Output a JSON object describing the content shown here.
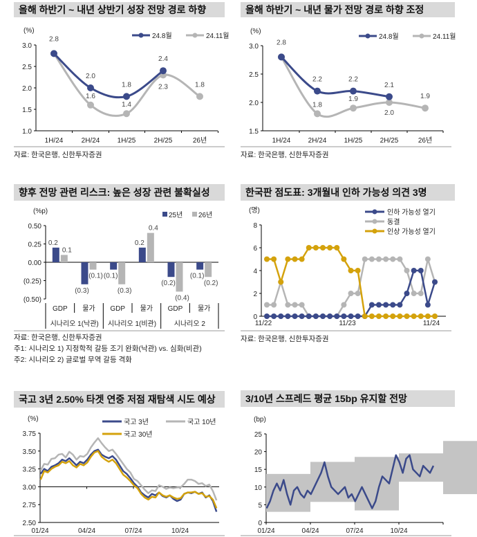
{
  "colors": {
    "navy": "#3b4a8a",
    "gray": "#b5b5b5",
    "gold": "#d4a20c",
    "title_bg": "#d9d9d9"
  },
  "source_text": "자료: 한국은행, 신한투자증권",
  "chart_data": [
    {
      "id": "growth",
      "type": "line",
      "title": "올해 하반기 ~ 내년 상반기 성장 전망 경로 하향",
      "unit": "(%)",
      "categories": [
        "1H/24",
        "2H/24",
        "1H/25",
        "2H/25",
        "26년"
      ],
      "ylim": [
        1.0,
        3.0
      ],
      "yticks": [
        "1.0",
        "1.5",
        "2.0",
        "2.5",
        "3.0"
      ],
      "series": [
        {
          "name": "24.8월",
          "values": [
            2.8,
            2.0,
            1.8,
            2.4,
            null
          ],
          "color": "#3b4a8a"
        },
        {
          "name": "24.11월",
          "values": [
            2.8,
            1.6,
            1.4,
            2.3,
            1.8
          ],
          "color": "#b5b5b5"
        }
      ],
      "data_labels": true
    },
    {
      "id": "inflation",
      "type": "line",
      "title": "올해 하반기 ~ 내년 물가 전망 경로 하향 조정",
      "unit": "(%)",
      "categories": [
        "1H/24",
        "2H/24",
        "1H/25",
        "2H/25",
        "26년"
      ],
      "ylim": [
        1.5,
        3.0
      ],
      "yticks": [
        "1.5",
        "2.0",
        "2.5",
        "3.0"
      ],
      "series": [
        {
          "name": "24.8월",
          "values": [
            2.8,
            2.2,
            2.2,
            2.1,
            null
          ],
          "color": "#3b4a8a"
        },
        {
          "name": "24.11월",
          "values": [
            2.8,
            1.8,
            1.9,
            2.0,
            1.9
          ],
          "color": "#b5b5b5"
        }
      ],
      "data_labels": true
    },
    {
      "id": "risk",
      "type": "bar",
      "title": "향후 전망 관련 리스크: 높은 성장 관련 불확실성",
      "unit": "(%p)",
      "categories": [
        "GDP",
        "물가",
        "GDP",
        "물가",
        "GDP",
        "물가"
      ],
      "groups": [
        "시나리오 1(낙관)",
        "시나리오 1(비관)",
        "시나리오 2"
      ],
      "ylim": [
        -0.5,
        0.5
      ],
      "yticks": [
        "(0.50)",
        "(0.25)",
        "0.00",
        "0.25",
        "0.50"
      ],
      "series": [
        {
          "name": "25년",
          "values": [
            0.2,
            -0.3,
            -0.1,
            0.2,
            -0.2,
            -0.1
          ],
          "color": "#3b4a8a"
        },
        {
          "name": "26년",
          "values": [
            0.1,
            -0.1,
            -0.3,
            0.4,
            -0.4,
            -0.2
          ],
          "color": "#b5b5b5"
        }
      ],
      "notes": [
        "주1: 시나리오 1) 지정학적 갈등 조기 완화(낙관) vs. 심화(비관)",
        "주2: 시나리오 2) 글로벌 무역 갈등 격화"
      ]
    },
    {
      "id": "dotplot",
      "type": "line",
      "title": "한국판 점도표: 3개월내 인하 가능성 의견 3명",
      "unit": "(명)",
      "x_ticks": [
        "11/22",
        "11/23",
        "11/24"
      ],
      "ylim": [
        0,
        8
      ],
      "yticks": [
        "0",
        "2",
        "4",
        "6",
        "8"
      ],
      "series": [
        {
          "name": "인하 가능성 열기",
          "color": "#3b4a8a",
          "values": [
            0,
            0,
            0,
            0,
            0,
            0,
            0,
            0,
            0,
            0,
            0,
            0,
            0,
            0,
            0,
            1,
            1,
            1,
            1,
            1,
            2,
            4,
            4,
            1,
            3
          ]
        },
        {
          "name": "동결",
          "color": "#b5b5b5",
          "values": [
            1,
            1,
            3,
            1,
            1,
            1,
            0,
            0,
            0,
            0,
            0,
            1,
            2,
            2,
            5,
            5,
            5,
            5,
            5,
            5,
            4,
            2,
            2,
            5,
            3
          ]
        },
        {
          "name": "인상 가능성 열기",
          "color": "#d4a20c",
          "values": [
            5,
            5,
            3,
            5,
            5,
            5,
            6,
            6,
            6,
            6,
            6,
            5,
            4,
            4,
            0,
            0,
            0,
            0,
            0,
            0,
            0,
            0,
            0,
            0,
            0
          ]
        }
      ]
    },
    {
      "id": "yields",
      "type": "line",
      "title": "국고 3년 2.50% 타겟 연중 저점 재탐색 시도 예상",
      "unit": "(%)",
      "x_ticks": [
        "01/24",
        "04/24",
        "07/24",
        "10/24"
      ],
      "ylim": [
        2.5,
        3.75
      ],
      "yticks": [
        "2.50",
        "2.75",
        "3.00",
        "3.25",
        "3.50",
        "3.75"
      ],
      "dates": [
        "2024-01-02",
        "2024-01-09",
        "2024-01-16",
        "2024-01-23",
        "2024-01-30",
        "2024-02-06",
        "2024-02-13",
        "2024-02-20",
        "2024-02-27",
        "2024-03-05",
        "2024-03-12",
        "2024-03-19",
        "2024-03-26",
        "2024-04-02",
        "2024-04-09",
        "2024-04-16",
        "2024-04-23",
        "2024-04-30",
        "2024-05-07",
        "2024-05-14",
        "2024-05-21",
        "2024-05-28",
        "2024-06-04",
        "2024-06-11",
        "2024-06-18",
        "2024-06-25",
        "2024-07-02",
        "2024-07-09",
        "2024-07-16",
        "2024-07-23",
        "2024-07-30",
        "2024-08-06",
        "2024-08-13",
        "2024-08-20",
        "2024-08-27",
        "2024-09-03",
        "2024-09-10",
        "2024-09-17",
        "2024-09-24",
        "2024-10-01",
        "2024-10-08",
        "2024-10-15",
        "2024-10-22",
        "2024-10-29",
        "2024-11-05",
        "2024-11-12",
        "2024-11-19",
        "2024-11-26",
        "2024-12-03",
        "2024-12-10"
      ],
      "series": [
        {
          "name": "국고 10년",
          "color": "#b5b5b5",
          "values": [
            3.23,
            3.32,
            3.31,
            3.39,
            3.4,
            3.45,
            3.46,
            3.41,
            3.49,
            3.45,
            3.38,
            3.43,
            3.42,
            3.46,
            3.55,
            3.62,
            3.68,
            3.61,
            3.55,
            3.5,
            3.52,
            3.46,
            3.39,
            3.32,
            3.25,
            3.2,
            3.11,
            3.08,
            3.02,
            2.96,
            2.91,
            2.95,
            2.94,
            3.02,
            3.0,
            2.97,
            2.99,
            2.98,
            2.99,
            2.99,
            3.04,
            3.1,
            3.1,
            3.08,
            3.04,
            3.05,
            3.01,
            3.03,
            2.94,
            2.81
          ]
        },
        {
          "name": "국고 3년",
          "color": "#3b4a8a",
          "values": [
            3.18,
            3.25,
            3.22,
            3.28,
            3.3,
            3.33,
            3.38,
            3.36,
            3.4,
            3.35,
            3.3,
            3.35,
            3.33,
            3.38,
            3.45,
            3.5,
            3.52,
            3.45,
            3.42,
            3.4,
            3.43,
            3.38,
            3.3,
            3.22,
            3.18,
            3.12,
            3.05,
            3.0,
            2.92,
            2.88,
            2.85,
            2.9,
            2.88,
            2.92,
            2.87,
            2.85,
            2.88,
            2.83,
            2.8,
            2.82,
            2.9,
            2.92,
            2.91,
            2.93,
            2.9,
            2.92,
            2.85,
            2.88,
            2.8,
            2.65
          ]
        },
        {
          "name": "국고 30년",
          "color": "#d4a20c",
          "values": [
            3.1,
            3.22,
            3.2,
            3.25,
            3.28,
            3.3,
            3.35,
            3.33,
            3.36,
            3.3,
            3.27,
            3.32,
            3.3,
            3.34,
            3.42,
            3.48,
            3.5,
            3.42,
            3.38,
            3.35,
            3.38,
            3.33,
            3.25,
            3.17,
            3.13,
            3.08,
            3.02,
            2.98,
            2.9,
            2.85,
            2.82,
            2.86,
            2.85,
            2.92,
            2.88,
            2.86,
            2.88,
            2.85,
            2.83,
            2.84,
            2.9,
            2.92,
            2.92,
            2.93,
            2.9,
            2.91,
            2.86,
            2.87,
            2.82,
            2.7
          ]
        }
      ]
    },
    {
      "id": "spread",
      "type": "area",
      "title": "3/10년 스프레드 평균 15bp 유지할 전망",
      "unit": "(bp)",
      "x_ticks": [
        "01/24",
        "04/24",
        "07/24",
        "10/24"
      ],
      "ylim": [
        0,
        25
      ],
      "yticks": [
        "0",
        "5",
        "10",
        "15",
        "20",
        "25"
      ],
      "bands": [
        {
          "period": "2024Q1",
          "low": 3.0,
          "high": 13.7
        },
        {
          "period": "2024Q2",
          "low": 5.8,
          "high": 17.1
        },
        {
          "period": "2024Q3",
          "low": 3.4,
          "high": 18.5
        },
        {
          "period": "2024Q4",
          "low": 11.5,
          "high": 19.5
        },
        {
          "period": "2025Q1",
          "low": 8.0,
          "high": 23.0
        }
      ],
      "band_color": "#c4c4c4",
      "series": [
        {
          "color": "#3b4a8a",
          "values": [
            4,
            6,
            9,
            11,
            9,
            12,
            8,
            5,
            9,
            10,
            8,
            7,
            9,
            8,
            10,
            12,
            14,
            17,
            13,
            10,
            9,
            8,
            9,
            10,
            7,
            8,
            6,
            8,
            10,
            8,
            6,
            4,
            6,
            10,
            13,
            12,
            11,
            15,
            19,
            17,
            14,
            18,
            19,
            15,
            14,
            13,
            16,
            15,
            14,
            16
          ]
        }
      ]
    }
  ]
}
